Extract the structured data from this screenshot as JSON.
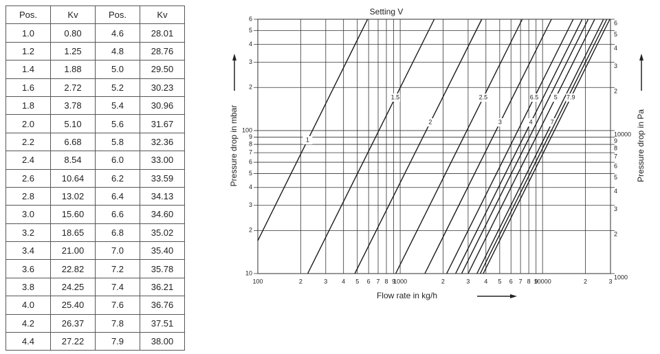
{
  "table": {
    "header": [
      "Pos.",
      "Kv",
      "Pos.",
      "Kv"
    ],
    "rows": [
      [
        "1.0",
        "0.80",
        "4.6",
        "28.01"
      ],
      [
        "1.2",
        "1.25",
        "4.8",
        "28.76"
      ],
      [
        "1.4",
        "1.88",
        "5.0",
        "29.50"
      ],
      [
        "1.6",
        "2.72",
        "5.2",
        "30.23"
      ],
      [
        "1.8",
        "3.78",
        "5.4",
        "30.96"
      ],
      [
        "2.0",
        "5.10",
        "5.6",
        "31.67"
      ],
      [
        "2.2",
        "6.68",
        "5.8",
        "32.36"
      ],
      [
        "2.4",
        "8.54",
        "6.0",
        "33.00"
      ],
      [
        "2.6",
        "10.64",
        "6.2",
        "33.59"
      ],
      [
        "2.8",
        "13.02",
        "6.4",
        "34.13"
      ],
      [
        "3.0",
        "15.60",
        "6.6",
        "34.60"
      ],
      [
        "3.2",
        "18.65",
        "6.8",
        "35.02"
      ],
      [
        "3.4",
        "21.00",
        "7.0",
        "35.40"
      ],
      [
        "3.6",
        "22.82",
        "7.2",
        "35.78"
      ],
      [
        "3.8",
        "24.25",
        "7.4",
        "36.21"
      ],
      [
        "4.0",
        "25.40",
        "7.6",
        "36.76"
      ],
      [
        "4.2",
        "26.37",
        "7.8",
        "37.51"
      ],
      [
        "4.4",
        "27.22",
        "7.9",
        "38.00"
      ]
    ]
  },
  "chart_data": {
    "type": "line",
    "title": "Setting V",
    "x_label": "Flow rate in kg/h",
    "y_label": "Pressure drop in mbar",
    "y2_label": "Pressure drop in Pa",
    "xscale": "log",
    "yscale": "log",
    "grid": true,
    "xlim": [
      100,
      30000
    ],
    "ylim": [
      10,
      600
    ],
    "y2lim": [
      1000,
      60000
    ],
    "xticks": [
      100,
      {
        "value": 200,
        "label": "2"
      },
      {
        "value": 300,
        "label": "3"
      },
      {
        "value": 400,
        "label": "4"
      },
      {
        "value": 500,
        "label": "5"
      },
      {
        "value": 600,
        "label": "6"
      },
      {
        "value": 700,
        "label": "7"
      },
      {
        "value": 800,
        "label": "8"
      },
      {
        "value": 900,
        "label": "9"
      },
      1000,
      {
        "value": 2000,
        "label": "2"
      },
      {
        "value": 3000,
        "label": "3"
      },
      {
        "value": 4000,
        "label": "4"
      },
      {
        "value": 5000,
        "label": "5"
      },
      {
        "value": 6000,
        "label": "6"
      },
      {
        "value": 7000,
        "label": "7"
      },
      {
        "value": 8000,
        "label": "8"
      },
      {
        "value": 9000,
        "label": "9"
      },
      10000,
      {
        "value": 20000,
        "label": "2"
      },
      {
        "value": 30000,
        "label": "3"
      }
    ],
    "yticks": [
      10,
      {
        "value": 20,
        "label": "2"
      },
      {
        "value": 30,
        "label": "3"
      },
      {
        "value": 40,
        "label": "4"
      },
      {
        "value": 50,
        "label": "5"
      },
      {
        "value": 60,
        "label": "6"
      },
      {
        "value": 70,
        "label": "7"
      },
      {
        "value": 80,
        "label": "8"
      },
      {
        "value": 90,
        "label": "9"
      },
      100,
      {
        "value": 200,
        "label": "2"
      },
      {
        "value": 300,
        "label": "3"
      },
      {
        "value": 400,
        "label": "4"
      },
      {
        "value": 500,
        "label": "5"
      },
      {
        "value": 600,
        "label": "6"
      }
    ],
    "y2ticks": [
      1000,
      {
        "value": 2000,
        "label": "2"
      },
      {
        "value": 3000,
        "label": "3"
      },
      {
        "value": 4000,
        "label": "4"
      },
      {
        "value": 5000,
        "label": "5"
      },
      {
        "value": 6000,
        "label": "6"
      },
      {
        "value": 7000,
        "label": "7"
      },
      {
        "value": 8000,
        "label": "8"
      },
      {
        "value": 9000,
        "label": "9"
      },
      10000,
      {
        "value": 20000,
        "label": "2"
      },
      {
        "value": 30000,
        "label": "3"
      },
      {
        "value": 40000,
        "label": "4"
      },
      {
        "value": 50000,
        "label": "5"
      },
      {
        "value": 60000,
        "label": "6"
      }
    ],
    "series": [
      {
        "name": "1",
        "color": "#1a1a1a",
        "x": [
          100,
          590
        ],
        "values": [
          17,
          600
        ]
      },
      {
        "name": "1.5",
        "color": "#1a1a1a",
        "x": [
          224,
          1735
        ],
        "values": [
          10,
          600
        ]
      },
      {
        "name": "2",
        "color": "#1a1a1a",
        "x": [
          480,
          3740
        ],
        "values": [
          10,
          600
        ]
      },
      {
        "name": "2.5",
        "color": "#1a1a1a",
        "x": [
          930,
          7200
        ],
        "values": [
          10,
          600
        ]
      },
      {
        "name": "3",
        "color": "#1a1a1a",
        "x": [
          1490,
          11540
        ],
        "values": [
          10,
          600
        ]
      },
      {
        "name": "6.5",
        "color": "#1a1a1a",
        "x": [
          2120,
          16420
        ],
        "values": [
          10,
          600
        ]
      },
      {
        "name": "4",
        "color": "#1a1a1a",
        "x": [
          2450,
          18980
        ],
        "values": [
          10,
          600
        ]
      },
      {
        "color": "#1a1a1a",
        "x": [
          2700,
          20910
        ],
        "values": [
          10,
          600
        ]
      },
      {
        "name": "5",
        "color": "#1a1a1a",
        "x": [
          3000,
          23240
        ],
        "values": [
          10,
          600
        ]
      },
      {
        "name": "7",
        "color": "#1a1a1a",
        "x": [
          3460,
          26800
        ],
        "values": [
          10,
          600
        ]
      },
      {
        "color": "#1a1a1a",
        "x": [
          3650,
          28270
        ],
        "values": [
          10,
          600
        ]
      },
      {
        "name": "7.9",
        "color": "#1a1a1a",
        "x": [
          3830,
          29670
        ],
        "values": [
          10,
          600
        ]
      }
    ]
  }
}
